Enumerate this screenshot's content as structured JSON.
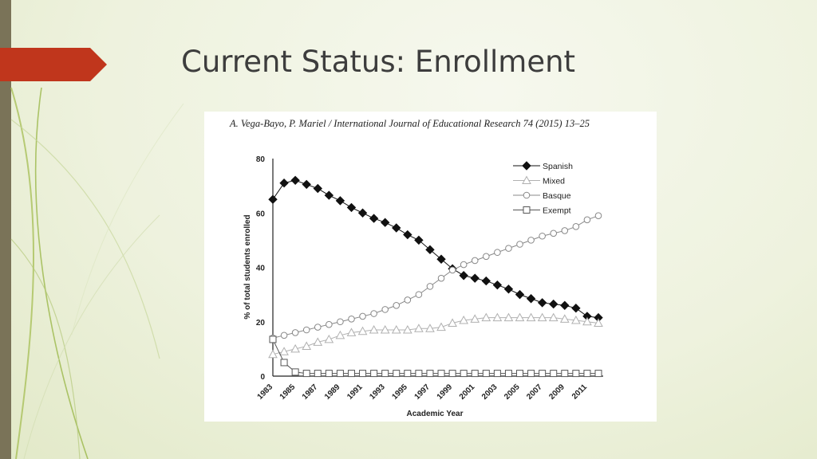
{
  "slide": {
    "title": "Current Status: Enrollment"
  },
  "figure": {
    "citation": "A. Vega-Bayo, P. Mariel / International Journal of Educational Research 74 (2015) 13–25"
  },
  "chart_data": {
    "type": "line",
    "title": "",
    "xlabel": "Academic Year",
    "ylabel": "% of total students enrolled",
    "ylim": [
      0,
      80
    ],
    "xlim": [
      1983,
      2012
    ],
    "yticks": [
      0,
      20,
      40,
      60,
      80
    ],
    "xticks": [
      1983,
      1985,
      1987,
      1989,
      1991,
      1993,
      1995,
      1997,
      1999,
      2001,
      2003,
      2005,
      2007,
      2009,
      2011
    ],
    "legend_position": "top-right",
    "x": [
      1983,
      1984,
      1985,
      1986,
      1987,
      1988,
      1989,
      1990,
      1991,
      1992,
      1993,
      1994,
      1995,
      1996,
      1997,
      1998,
      1999,
      2000,
      2001,
      2002,
      2003,
      2004,
      2005,
      2006,
      2007,
      2008,
      2009,
      2010,
      2011,
      2012
    ],
    "series": [
      {
        "name": "Spanish",
        "marker": "diamond",
        "color": "#111111",
        "fill": "#111111",
        "values": [
          65,
          71,
          72,
          70.5,
          69,
          66.5,
          64.5,
          62,
          60,
          58,
          56.5,
          54.5,
          52,
          50,
          46.5,
          43,
          39.5,
          37,
          36,
          35,
          33.5,
          32,
          30,
          28.5,
          27,
          26.5,
          26,
          25,
          22,
          21.5
        ]
      },
      {
        "name": "Mixed",
        "marker": "triangle",
        "color": "#b0b0b0",
        "fill": "#ffffff",
        "values": [
          8,
          9,
          10,
          11,
          12.5,
          13.5,
          15,
          16,
          16.5,
          17,
          17,
          17,
          17,
          17.5,
          17.5,
          18,
          19.5,
          20.5,
          21,
          21.5,
          21.5,
          21.5,
          21.5,
          21.5,
          21.5,
          21.5,
          21,
          20.5,
          20,
          19.5
        ]
      },
      {
        "name": "Basque",
        "marker": "circle",
        "color": "#888888",
        "fill": "#ffffff",
        "values": [
          14,
          15,
          16,
          17,
          18,
          19,
          20,
          21,
          22,
          23,
          24.5,
          26,
          28,
          30,
          33,
          36,
          39,
          41,
          42.5,
          44,
          45.5,
          47,
          48.5,
          50,
          51.5,
          52.5,
          53.5,
          55,
          57.5,
          59
        ]
      },
      {
        "name": "Exempt",
        "marker": "square",
        "color": "#555555",
        "fill": "#ffffff",
        "values": [
          13.5,
          5,
          1.5,
          1,
          1,
          1,
          1,
          1,
          1,
          1,
          1,
          1,
          1,
          1,
          1,
          1,
          1,
          1,
          1,
          1,
          1,
          1,
          1,
          1,
          1,
          1,
          1,
          1,
          1,
          1
        ]
      }
    ]
  }
}
